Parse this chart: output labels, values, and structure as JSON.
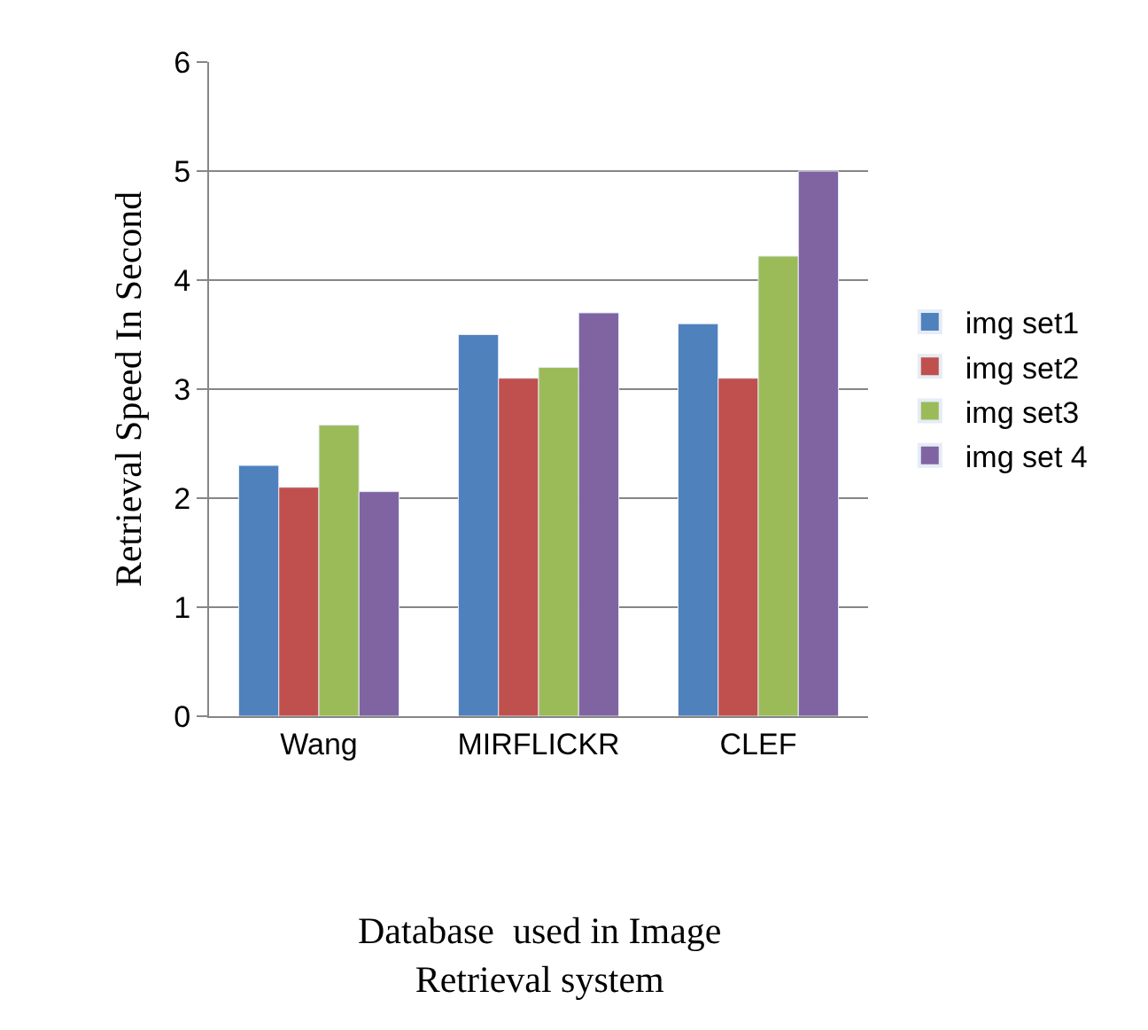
{
  "chart_data": {
    "type": "bar",
    "xlabel": "Database  used in Image\nRetrieval system",
    "ylabel": "Retrieval Speed In Second",
    "categories": [
      "Wang",
      "MIRFLICKR",
      "CLEF"
    ],
    "series": [
      {
        "name": "img set1",
        "color": "#4f81bd",
        "values": [
          2.3,
          3.5,
          3.6
        ]
      },
      {
        "name": "img set2",
        "color": "#c0504d",
        "values": [
          2.1,
          3.1,
          3.1
        ]
      },
      {
        "name": "img set3",
        "color": "#9bbb59",
        "values": [
          2.67,
          3.2,
          4.22
        ]
      },
      {
        "name": "img set 4",
        "color": "#8064a2",
        "values": [
          2.06,
          3.7,
          5.0
        ]
      }
    ],
    "ylim": [
      0,
      6
    ],
    "yticks": [
      0,
      1,
      2,
      3,
      4,
      5,
      6
    ],
    "grid": "y",
    "legend": "right"
  }
}
